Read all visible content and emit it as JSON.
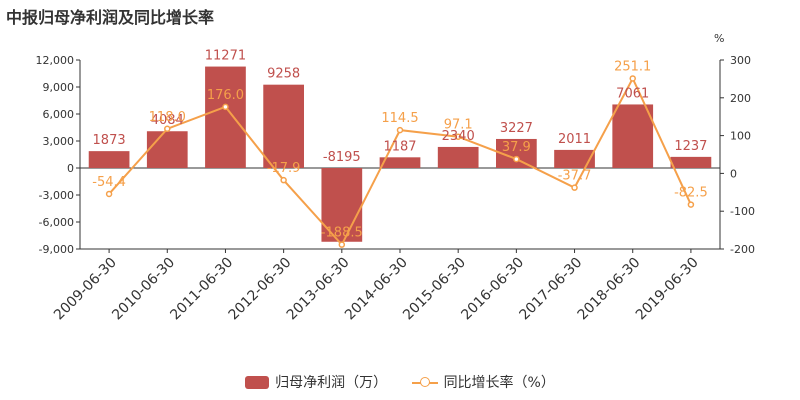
{
  "page_title": "中报归母净利润及同比增长率",
  "chart_data": {
    "type": "bar",
    "categories": [
      "2009-06-30",
      "2010-06-30",
      "2011-06-30",
      "2012-06-30",
      "2013-06-30",
      "2014-06-30",
      "2015-06-30",
      "2016-06-30",
      "2017-06-30",
      "2018-06-30",
      "2019-06-30"
    ],
    "series": [
      {
        "name": "归母净利润（万）",
        "type": "bar",
        "axis": "left",
        "values": [
          1873,
          4084,
          11271,
          9258,
          -8195,
          1187,
          2340,
          3227,
          2011,
          7061,
          1237
        ],
        "labels": [
          "1873",
          "4084",
          "11271",
          "9258",
          "-8195",
          "1187",
          "2340",
          "3227",
          "2011",
          "7061",
          "1237"
        ],
        "color": "#c0504d"
      },
      {
        "name": "同比增长率（%）",
        "type": "line",
        "axis": "right",
        "values": [
          -54.4,
          118.0,
          176.0,
          -17.9,
          -188.5,
          114.5,
          97.1,
          37.9,
          -37.7,
          251.1,
          -82.5
        ],
        "labels": [
          "-54.4",
          "118.0",
          "176.0",
          "-17.9",
          "-188.5",
          "114.5",
          "97.1",
          "37.9",
          "-37.7",
          "251.1",
          "-82.5"
        ],
        "color": "#f5a04a"
      }
    ],
    "y_left": {
      "min": -9000,
      "max": 12000,
      "ticks": [
        12000,
        9000,
        6000,
        3000,
        0,
        -3000,
        -6000,
        -9000
      ],
      "tick_labels": [
        "12,000",
        "9,000",
        "6,000",
        "3,000",
        "0",
        "-3,000",
        "-6,000",
        "-9,000"
      ]
    },
    "y_right": {
      "min": -200,
      "max": 300,
      "ticks": [
        300,
        200,
        100,
        0,
        -100,
        -200
      ],
      "tick_labels": [
        "300",
        "200",
        "100",
        "0",
        "-100",
        "-200"
      ],
      "unit": "%"
    },
    "grid": false,
    "legend_position": "bottom"
  },
  "legend": {
    "bar_label": "归母净利润（万）",
    "line_label": "同比增长率（%）"
  }
}
